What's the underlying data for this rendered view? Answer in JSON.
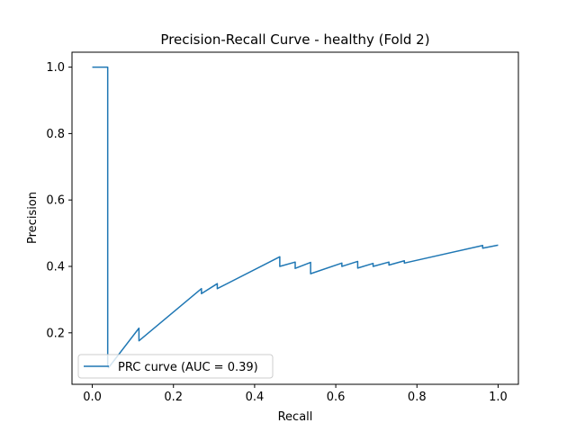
{
  "chart_data": {
    "type": "line",
    "title": "Precision-Recall Curve - healthy (Fold 2)",
    "xlabel": "Recall",
    "ylabel": "Precision",
    "xlim": [
      -0.05,
      1.05
    ],
    "ylim": [
      0.045,
      1.045
    ],
    "xticks": [
      0.0,
      0.2,
      0.4,
      0.6,
      0.8,
      1.0
    ],
    "xtick_labels": [
      "0.0",
      "0.2",
      "0.4",
      "0.6",
      "0.8",
      "1.0"
    ],
    "yticks": [
      0.2,
      0.4,
      0.6,
      0.8,
      1.0
    ],
    "ytick_labels": [
      "0.2",
      "0.4",
      "0.6",
      "0.8",
      "1.0"
    ],
    "grid": false,
    "legend_position": "lower-left",
    "series": [
      {
        "name": "PRC curve (AUC = 0.39)",
        "color": "#1f77b4",
        "x": [
          0.0,
          0.038,
          0.038,
          0.04,
          0.115,
          0.115,
          0.269,
          0.269,
          0.308,
          0.308,
          0.462,
          0.462,
          0.5,
          0.5,
          0.538,
          0.538,
          0.615,
          0.615,
          0.654,
          0.654,
          0.692,
          0.692,
          0.731,
          0.731,
          0.769,
          0.769,
          0.962,
          0.962,
          1.0
        ],
        "y": [
          1.0,
          1.0,
          0.1,
          0.095,
          0.214,
          0.176,
          0.333,
          0.318,
          0.348,
          0.333,
          0.429,
          0.4,
          0.413,
          0.394,
          0.412,
          0.378,
          0.41,
          0.4,
          0.415,
          0.395,
          0.409,
          0.4,
          0.413,
          0.404,
          0.417,
          0.41,
          0.463,
          0.455,
          0.464
        ]
      }
    ]
  }
}
